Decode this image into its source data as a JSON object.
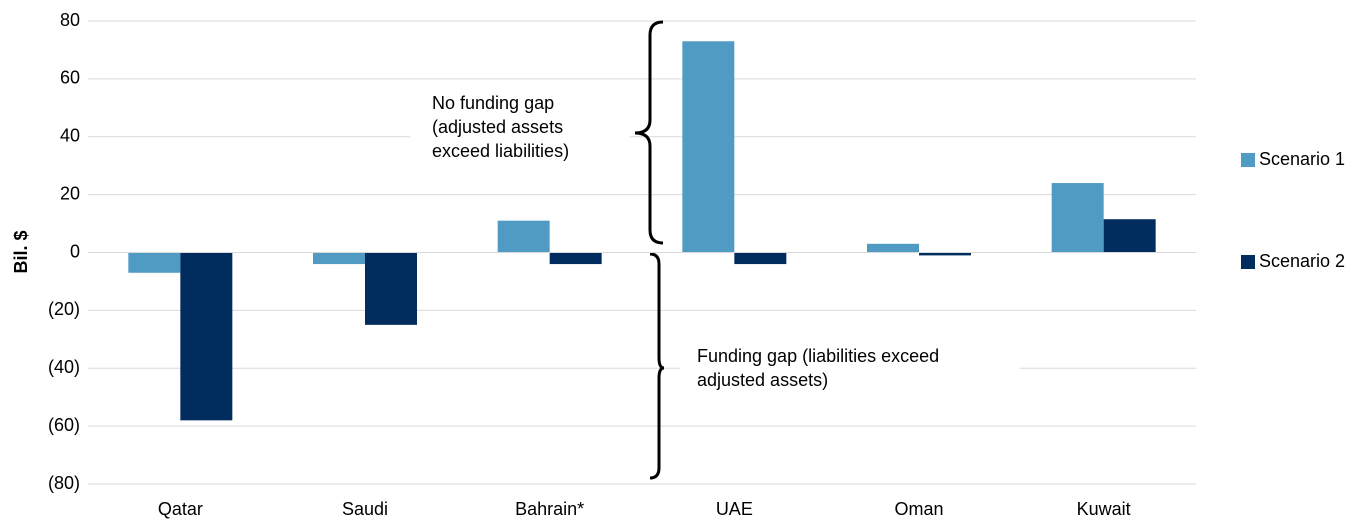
{
  "chart_data": {
    "type": "bar",
    "ylabel": "Bil. $",
    "categories": [
      "Qatar",
      "Saudi",
      "Bahrain*",
      "UAE",
      "Oman",
      "Kuwait"
    ],
    "series": [
      {
        "name": "Scenario 1",
        "color": "#4f9bc4",
        "values": [
          -7,
          -4,
          11,
          73,
          3,
          24
        ]
      },
      {
        "name": "Scenario 2",
        "color": "#002d5e",
        "values": [
          -58,
          -25,
          -4,
          -4,
          -1,
          11.5
        ]
      }
    ],
    "ylim": [
      -80,
      80
    ],
    "yticks": [
      {
        "value": -80,
        "label": "(80)"
      },
      {
        "value": -60,
        "label": "(60)"
      },
      {
        "value": -40,
        "label": "(40)"
      },
      {
        "value": -20,
        "label": "(20)"
      },
      0,
      20,
      40,
      60,
      80
    ],
    "grid": true,
    "legend": "right",
    "annotations": [
      {
        "lines": [
          "No funding gap",
          "(adjusted assets",
          "exceed liabilities)"
        ]
      },
      {
        "lines": [
          "Funding gap (liabilities exceed",
          "adjusted assets)"
        ]
      }
    ]
  }
}
